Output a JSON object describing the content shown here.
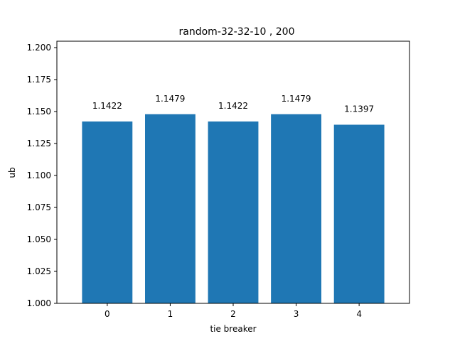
{
  "chart_data": {
    "type": "bar",
    "title": "random-32-32-10 , 200",
    "xlabel": "tie breaker",
    "ylabel": "ub",
    "categories": [
      "0",
      "1",
      "2",
      "3",
      "4"
    ],
    "values": [
      1.1422,
      1.1479,
      1.1422,
      1.1479,
      1.1397
    ],
    "data_labels": [
      "1.1422",
      "1.1479",
      "1.1422",
      "1.1479",
      "1.1397"
    ],
    "ylim": [
      1.0,
      1.205
    ],
    "yticks": [
      1.0,
      1.025,
      1.05,
      1.075,
      1.1,
      1.125,
      1.15,
      1.175,
      1.2
    ],
    "ytick_labels": [
      "1.000",
      "1.025",
      "1.050",
      "1.075",
      "1.100",
      "1.125",
      "1.150",
      "1.175",
      "1.200"
    ],
    "bar_color": "#1f77b4",
    "grid": false,
    "legend": "none"
  }
}
